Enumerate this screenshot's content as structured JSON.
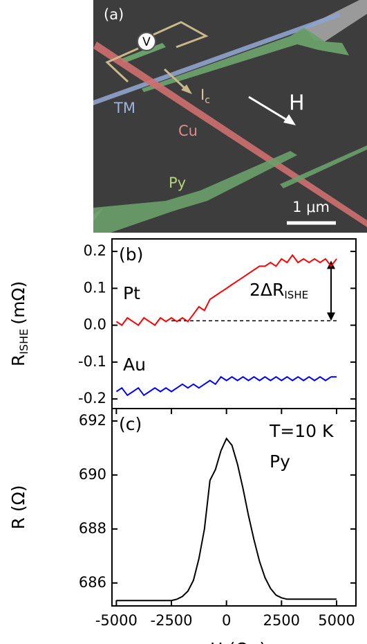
{
  "image": {
    "panel": "(a)",
    "voltage": "V",
    "current": "I",
    "current_sub": "c",
    "field": "H",
    "tm": "TM",
    "cu": "Cu",
    "py": "Py",
    "scale": "1 μm"
  },
  "chart_data": [
    {
      "type": "line",
      "panel": "(b)",
      "ylabel": [
        "R",
        "ISHE",
        "(mΩ)"
      ],
      "xlim": [
        -5200,
        5880
      ],
      "ylim": [
        -0.226,
        0.234
      ],
      "yticks": [
        -0.2,
        -0.1,
        {
          "value": 0,
          "label": "0.0"
        },
        0.1,
        0.2
      ],
      "x": [
        -5000,
        -4750,
        -4500,
        -4250,
        -4000,
        -3750,
        -3500,
        -3250,
        -3000,
        -2750,
        -2500,
        -2250,
        -2000,
        -1750,
        -1500,
        -1250,
        -1000,
        -750,
        -500,
        -250,
        0,
        250,
        500,
        750,
        1000,
        1250,
        1500,
        1750,
        2000,
        2250,
        2500,
        2750,
        3000,
        3250,
        3500,
        3750,
        4000,
        4250,
        4500,
        4750,
        5000
      ],
      "series": [
        {
          "name": "Pt",
          "color": "#ff0000",
          "values": [
            0.01,
            0.0,
            0.02,
            0.01,
            0.0,
            0.02,
            0.01,
            0.0,
            0.02,
            0.01,
            0.02,
            0.01,
            0.02,
            0.01,
            0.03,
            0.05,
            0.04,
            0.07,
            0.08,
            0.09,
            0.1,
            0.11,
            0.12,
            0.13,
            0.14,
            0.15,
            0.16,
            0.16,
            0.17,
            0.16,
            0.18,
            0.17,
            0.19,
            0.17,
            0.18,
            0.17,
            0.18,
            0.17,
            0.18,
            0.16,
            0.18
          ]
        },
        {
          "name": "Au",
          "color": "#0000ff",
          "values": [
            -0.18,
            -0.17,
            -0.19,
            -0.18,
            -0.17,
            -0.19,
            -0.18,
            -0.17,
            -0.18,
            -0.17,
            -0.18,
            -0.17,
            -0.16,
            -0.17,
            -0.16,
            -0.17,
            -0.16,
            -0.15,
            -0.16,
            -0.14,
            -0.15,
            -0.14,
            -0.15,
            -0.14,
            -0.15,
            -0.14,
            -0.15,
            -0.14,
            -0.15,
            -0.14,
            -0.15,
            -0.14,
            -0.15,
            -0.14,
            -0.15,
            -0.14,
            -0.15,
            -0.14,
            -0.15,
            -0.14,
            -0.14
          ]
        }
      ],
      "reference": {
        "y": 0.012,
        "x": [
          -2500,
          5000
        ]
      },
      "arrow": {
        "x": 4750,
        "y": [
          0.012,
          0.175
        ],
        "label": [
          "2ΔR",
          "ISHE"
        ]
      }
    },
    {
      "type": "line",
      "panel": "(c)",
      "ylabel": [
        "R",
        "(Ω)"
      ],
      "xlabel": "H (Oe)",
      "annotation": "T=10 K",
      "xlim": [
        -5200,
        5880
      ],
      "ylim": [
        685.15,
        692.46
      ],
      "xticks": [
        -5000,
        -2500,
        0,
        2500,
        5000
      ],
      "yticks": [
        686,
        688,
        690,
        692
      ],
      "x": [
        -5000,
        -4750,
        -4500,
        -4250,
        -4000,
        -3750,
        -3500,
        -3250,
        -3000,
        -2750,
        -2500,
        -2250,
        -2000,
        -1750,
        -1500,
        -1250,
        -1000,
        -750,
        -500,
        -250,
        0,
        250,
        500,
        750,
        1000,
        1250,
        1500,
        1750,
        2000,
        2250,
        2500,
        2750,
        3000,
        3250,
        3500,
        3750,
        4000,
        4250,
        4500,
        4750,
        5000
      ],
      "series": [
        {
          "name": "Py",
          "color": "#000000",
          "values": [
            685.35,
            685.35,
            685.35,
            685.35,
            685.35,
            685.35,
            685.35,
            685.35,
            685.35,
            685.35,
            685.35,
            685.4,
            685.5,
            685.7,
            686.1,
            686.9,
            688.0,
            689.8,
            690.2,
            690.9,
            691.35,
            691.1,
            690.4,
            689.5,
            688.5,
            687.6,
            686.8,
            686.2,
            685.8,
            685.55,
            685.45,
            685.4,
            685.4,
            685.4,
            685.4,
            685.4,
            685.4,
            685.4,
            685.4,
            685.4,
            685.4
          ]
        }
      ]
    }
  ]
}
